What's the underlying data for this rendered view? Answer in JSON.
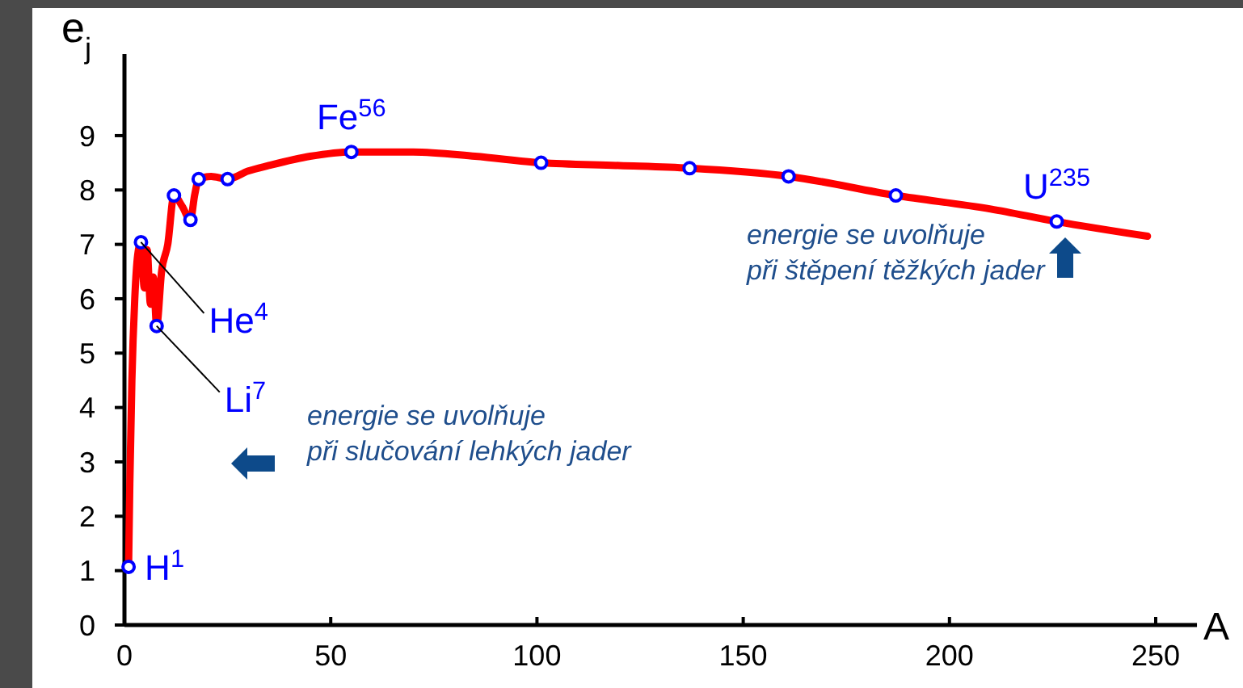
{
  "chart_data": {
    "type": "line",
    "xlabel": "A",
    "ylabel": "e$_{j}$",
    "xlim": [
      0,
      260
    ],
    "ylim": [
      0,
      10.5
    ],
    "xticks": [
      0,
      50,
      100,
      150,
      200,
      250
    ],
    "yticks": [
      0,
      1,
      2,
      3,
      4,
      5,
      6,
      7,
      8,
      9
    ],
    "grid": false,
    "series": [
      {
        "color": "#ff0000",
        "line_style": "solid",
        "marker": "none",
        "x": [
          1,
          1.3,
          1.8,
          2.5,
          3.2,
          4,
          4.8,
          5.5,
          6.3,
          7,
          7.8,
          9,
          10.5,
          12,
          14,
          16,
          17,
          18,
          21,
          25,
          30,
          35,
          45,
          55,
          70,
          85,
          101,
          120,
          137,
          161,
          187,
          210,
          226,
          248
        ],
        "values": [
          1.07,
          2.6,
          4.5,
          6.0,
          6.8,
          7.04,
          6.2,
          6.9,
          5.9,
          6.4,
          5.5,
          6.5,
          7.0,
          7.9,
          7.7,
          7.45,
          7.9,
          8.2,
          8.25,
          8.2,
          8.35,
          8.45,
          8.62,
          8.7,
          8.7,
          8.62,
          8.5,
          8.45,
          8.4,
          8.25,
          7.9,
          7.65,
          7.42,
          7.15
        ]
      },
      {
        "type": "scatter",
        "color": "#0000ff",
        "marker": "circle",
        "x": [
          1,
          4,
          7.8,
          12,
          16,
          18,
          25,
          55,
          101,
          137,
          161,
          187,
          226
        ],
        "values": [
          1.07,
          7.04,
          5.5,
          7.9,
          7.45,
          8.2,
          8.2,
          8.7,
          8.5,
          8.4,
          8.25,
          7.9,
          7.42
        ]
      }
    ],
    "annotations": [
      {
        "text": "H$^{1}$",
        "x": 1,
        "y": 1.07
      },
      {
        "text": "He$^{4}$",
        "x": 4,
        "y": 7.04
      },
      {
        "text": "Li$^{7}$",
        "x": 7.8,
        "y": 5.5
      },
      {
        "text": "Fe$^{56}$",
        "x": 55,
        "y": 8.7
      },
      {
        "text": "U$^{235}$",
        "x": 226,
        "y": 7.42
      },
      "energie se uvolňuje\npři štěpení těžkých jader",
      "energie se uvolňuje\npři slučování lehkých jader"
    ]
  }
}
